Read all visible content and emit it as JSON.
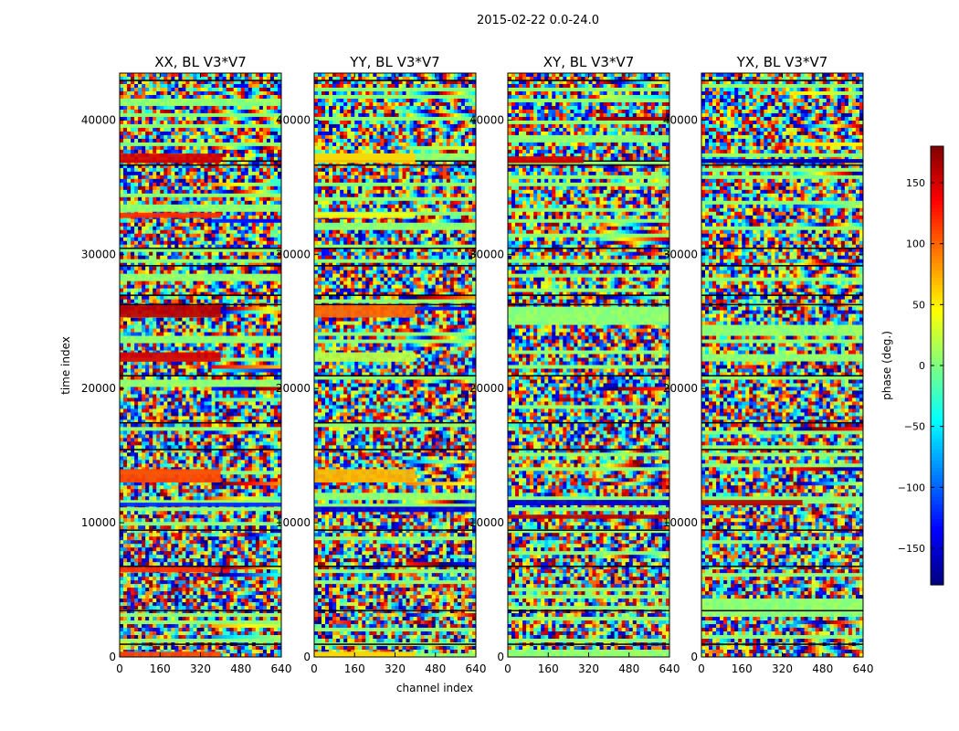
{
  "chart_data": {
    "type": "heatmap",
    "suptitle": "2015-02-22 0.0-24.0",
    "xlabel": "channel index",
    "ylabel": "time index",
    "xlim": [
      0,
      640
    ],
    "ylim": [
      0,
      43500
    ],
    "xticks": [
      0,
      160,
      320,
      480,
      640
    ],
    "yticks": [
      0,
      10000,
      20000,
      30000,
      40000
    ],
    "x_tick_labels": [
      "0",
      "160",
      "320",
      "480",
      "640"
    ],
    "y_tick_labels": [
      "0",
      "10000",
      "20000",
      "30000",
      "40000"
    ],
    "colormap": "jet",
    "value_range": [
      -180,
      180
    ],
    "panels": [
      {
        "title": "XX, BL V3*V7",
        "bright_bands": [
          {
            "t0": 36800,
            "t1": 37500,
            "value": 150,
            "c1": 400
          },
          {
            "t0": 32700,
            "t1": 33100,
            "value": 120,
            "c1": 400
          },
          {
            "t0": 25300,
            "t1": 26200,
            "value": 160,
            "c1": 400
          },
          {
            "t0": 22000,
            "t1": 22700,
            "value": 150,
            "c1": 400
          },
          {
            "t0": 13000,
            "t1": 14000,
            "value": 110,
            "c1": 400
          },
          {
            "t0": 11200,
            "t1": 11500,
            "value": -120,
            "c1": 640
          },
          {
            "t0": 6300,
            "t1": 6700,
            "value": 120,
            "c1": 400
          },
          {
            "t0": 0,
            "t1": 400,
            "value": 110,
            "c1": 400
          }
        ]
      },
      {
        "title": "YY, BL V3*V7",
        "bright_bands": [
          {
            "t0": 36800,
            "t1": 37500,
            "value": 60,
            "c1": 400
          },
          {
            "t0": 32700,
            "t1": 33100,
            "value": 40,
            "c1": 400
          },
          {
            "t0": 25300,
            "t1": 26200,
            "value": 100,
            "c1": 400
          },
          {
            "t0": 22000,
            "t1": 22700,
            "value": 20,
            "c1": 400
          },
          {
            "t0": 13000,
            "t1": 14000,
            "value": 70,
            "c1": 400
          },
          {
            "t0": 10800,
            "t1": 11200,
            "value": -150,
            "c1": 640
          },
          {
            "t0": 0,
            "t1": 400,
            "value": 60,
            "c1": 400
          }
        ]
      },
      {
        "title": "XY, BL V3*V7",
        "bright_bands": [
          {
            "t0": 36800,
            "t1": 37300,
            "value": 150,
            "c1": 300
          },
          {
            "t0": 11300,
            "t1": 11700,
            "value": -150,
            "c1": 640
          },
          {
            "t0": 10300,
            "t1": 10600,
            "value": 160,
            "c1": 640
          }
        ]
      },
      {
        "title": "YX, BL V3*V7",
        "bright_bands": [
          {
            "t0": 11300,
            "t1": 11700,
            "value": 160,
            "c1": 400
          },
          {
            "t0": 36800,
            "t1": 37100,
            "value": -160,
            "c1": 640
          }
        ]
      }
    ],
    "colorbar": {
      "label": "phase (deg.)",
      "ticks": [
        150,
        100,
        50,
        0,
        -50,
        -100,
        -150
      ],
      "tick_labels": [
        "150",
        "100",
        "50",
        "0",
        "−50",
        "−100",
        "−150"
      ],
      "range": [
        -180,
        180
      ]
    }
  }
}
